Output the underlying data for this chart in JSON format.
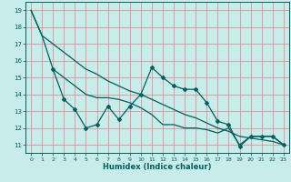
{
  "xlabel": "Humidex (Indice chaleur)",
  "background_color": "#c8ecea",
  "grid_color": "#e08080",
  "line_color": "#006060",
  "ylim": [
    10.5,
    19.5
  ],
  "xlim": [
    -0.5,
    23.5
  ],
  "yticks": [
    11,
    12,
    13,
    14,
    15,
    16,
    17,
    18,
    19
  ],
  "xticks": [
    0,
    1,
    2,
    3,
    4,
    5,
    6,
    7,
    8,
    9,
    10,
    11,
    12,
    13,
    14,
    15,
    16,
    17,
    18,
    19,
    20,
    21,
    22,
    23
  ],
  "line1_x": [
    0,
    1,
    2,
    3,
    4,
    5,
    6,
    7,
    8,
    9,
    10,
    11,
    12,
    13,
    14,
    15,
    16,
    17,
    18,
    19,
    20,
    21,
    22,
    23
  ],
  "line1_y": [
    19,
    17.5,
    17.0,
    16.5,
    16.0,
    15.5,
    15.2,
    14.8,
    14.5,
    14.2,
    14.0,
    13.7,
    13.4,
    13.1,
    12.8,
    12.6,
    12.3,
    12.0,
    11.8,
    11.5,
    11.4,
    11.3,
    11.2,
    11.0
  ],
  "line2_x": [
    2,
    3,
    4,
    5,
    6,
    7,
    8,
    9,
    10,
    11,
    12,
    13,
    14,
    15,
    16,
    17,
    18,
    19,
    20,
    21,
    22,
    23
  ],
  "line2_y": [
    15.5,
    13.7,
    13.1,
    12.0,
    12.2,
    13.3,
    12.5,
    13.3,
    14.0,
    15.6,
    15.0,
    14.5,
    14.3,
    14.3,
    13.5,
    12.4,
    12.2,
    10.9,
    11.5,
    11.5,
    11.5,
    11.0
  ],
  "line3_x": [
    0,
    1,
    2,
    3,
    4,
    5,
    6,
    7,
    8,
    9,
    10,
    11,
    12,
    13,
    14,
    15,
    16,
    17,
    18,
    19,
    20,
    21,
    22,
    23
  ],
  "line3_y": [
    19,
    17.5,
    15.5,
    15.0,
    14.5,
    14.0,
    13.8,
    13.8,
    13.7,
    13.5,
    13.2,
    12.8,
    12.2,
    12.2,
    12.0,
    12.0,
    11.9,
    11.7,
    12.0,
    11.0,
    11.5,
    11.5,
    11.5,
    11.0
  ]
}
